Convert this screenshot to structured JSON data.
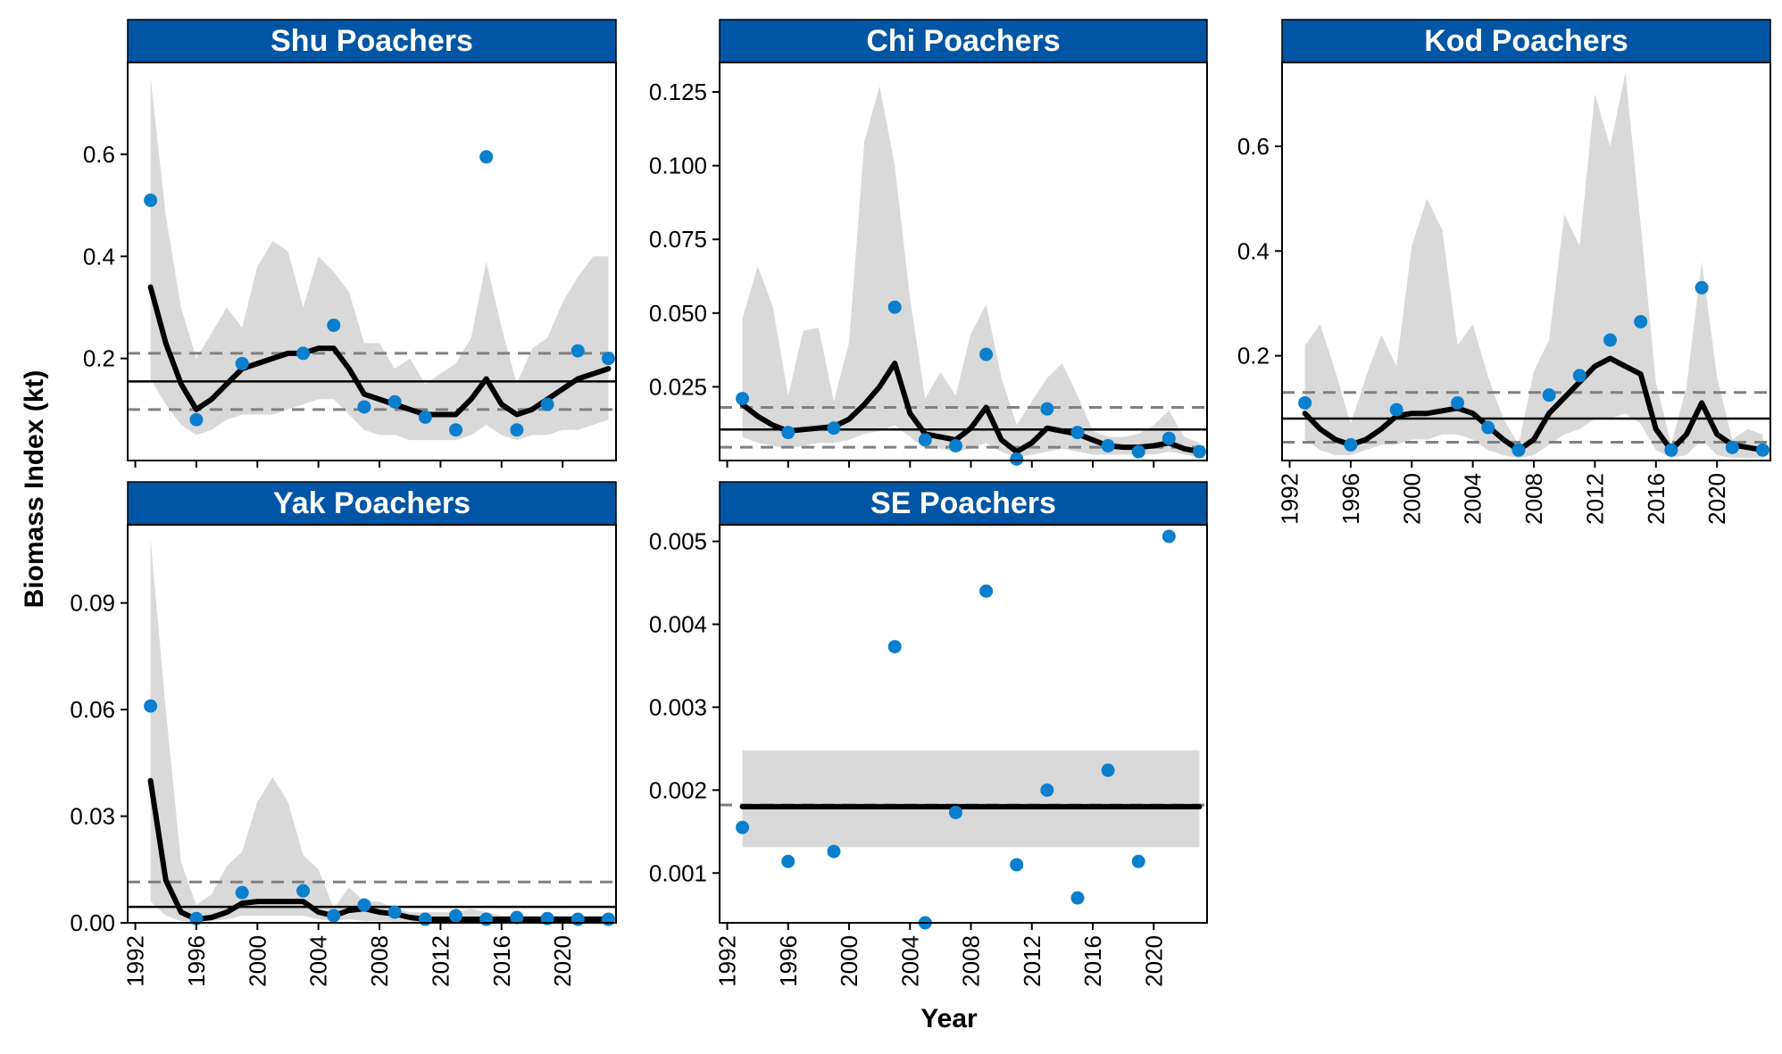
{
  "figure": {
    "xlabel": "Year",
    "ylabel": "Biomass Index (kt)",
    "colors": {
      "strip": "#0055A4",
      "strip_text": "#ffffff",
      "ribbon": "#d9d9d9",
      "line": "#000000",
      "points": "#0a7fce",
      "hline": "#000000",
      "dashed": "#808080"
    }
  },
  "chart_data": [
    {
      "panel": "shu",
      "title": "Shu Poachers",
      "type": "line",
      "xlim": [
        1991.5,
        2023.5
      ],
      "ylim": [
        0.0,
        0.78
      ],
      "xticks": [
        1992,
        1996,
        2000,
        2004,
        2008,
        2012,
        2016,
        2020
      ],
      "yticks": [
        "0.2",
        "0.4",
        "0.6"
      ],
      "show_x_ticks": false,
      "ribbon": {
        "x": [
          1993,
          1994,
          1995,
          1996,
          1997,
          1998,
          1999,
          2000,
          2001,
          2002,
          2003,
          2004,
          2005,
          2006,
          2007,
          2008,
          2009,
          2010,
          2011,
          2012,
          2013,
          2014,
          2015,
          2016,
          2017,
          2018,
          2019,
          2020,
          2021,
          2022,
          2023
        ],
        "upper": [
          0.75,
          0.48,
          0.3,
          0.2,
          0.25,
          0.3,
          0.26,
          0.38,
          0.43,
          0.41,
          0.3,
          0.4,
          0.37,
          0.33,
          0.23,
          0.23,
          0.18,
          0.2,
          0.15,
          0.17,
          0.19,
          0.24,
          0.39,
          0.26,
          0.15,
          0.22,
          0.24,
          0.31,
          0.36,
          0.4,
          0.4
        ],
        "lower": [
          0.16,
          0.11,
          0.07,
          0.05,
          0.06,
          0.08,
          0.09,
          0.09,
          0.09,
          0.1,
          0.11,
          0.12,
          0.12,
          0.09,
          0.06,
          0.05,
          0.05,
          0.04,
          0.04,
          0.04,
          0.04,
          0.05,
          0.07,
          0.05,
          0.04,
          0.05,
          0.05,
          0.06,
          0.06,
          0.07,
          0.08
        ]
      },
      "line": {
        "x": [
          1993,
          1994,
          1995,
          1996,
          1997,
          1998,
          1999,
          2000,
          2001,
          2002,
          2003,
          2004,
          2005,
          2006,
          2007,
          2008,
          2009,
          2010,
          2011,
          2012,
          2013,
          2014,
          2015,
          2016,
          2017,
          2018,
          2019,
          2020,
          2021,
          2022,
          2023
        ],
        "y": [
          0.34,
          0.23,
          0.15,
          0.1,
          0.12,
          0.15,
          0.18,
          0.19,
          0.2,
          0.21,
          0.21,
          0.22,
          0.22,
          0.18,
          0.13,
          0.12,
          0.11,
          0.1,
          0.09,
          0.09,
          0.09,
          0.12,
          0.16,
          0.11,
          0.09,
          0.1,
          0.12,
          0.14,
          0.16,
          0.17,
          0.18
        ]
      },
      "points": {
        "x": [
          1993,
          1996,
          1999,
          2003,
          2005,
          2007,
          2009,
          2011,
          2013,
          2015,
          2017,
          2019,
          2021,
          2023
        ],
        "y": [
          0.51,
          0.08,
          0.19,
          0.21,
          0.265,
          0.105,
          0.115,
          0.085,
          0.06,
          0.595,
          0.06,
          0.11,
          0.215,
          0.2
        ]
      },
      "hline": 0.155,
      "dashed": [
        0.21,
        0.1
      ]
    },
    {
      "panel": "chi",
      "title": "Chi Poachers",
      "type": "line",
      "xlim": [
        1991.5,
        2023.5
      ],
      "ylim": [
        0.0,
        0.135
      ],
      "xticks": [
        1992,
        1996,
        2000,
        2004,
        2008,
        2012,
        2016,
        2020
      ],
      "yticks": [
        "0.025",
        "0.050",
        "0.075",
        "0.100",
        "0.125"
      ],
      "show_x_ticks": false,
      "ribbon": {
        "x": [
          1993,
          1994,
          1995,
          1996,
          1997,
          1998,
          1999,
          2000,
          2001,
          2002,
          2003,
          2004,
          2005,
          2006,
          2007,
          2008,
          2009,
          2010,
          2011,
          2012,
          2013,
          2014,
          2015,
          2016,
          2017,
          2018,
          2019,
          2020,
          2021,
          2022,
          2023
        ],
        "upper": [
          0.048,
          0.066,
          0.052,
          0.022,
          0.044,
          0.045,
          0.02,
          0.04,
          0.108,
          0.127,
          0.1,
          0.055,
          0.021,
          0.03,
          0.022,
          0.043,
          0.053,
          0.028,
          0.012,
          0.02,
          0.028,
          0.033,
          0.022,
          0.01,
          0.008,
          0.008,
          0.009,
          0.012,
          0.017,
          0.008,
          0.006
        ],
        "lower": [
          0.008,
          0.006,
          0.005,
          0.004,
          0.005,
          0.006,
          0.006,
          0.007,
          0.009,
          0.01,
          0.012,
          0.008,
          0.004,
          0.004,
          0.003,
          0.004,
          0.006,
          0.003,
          0.001,
          0.002,
          0.003,
          0.004,
          0.003,
          0.002,
          0.002,
          0.002,
          0.002,
          0.002,
          0.003,
          0.002,
          0.001
        ]
      },
      "line": {
        "x": [
          1993,
          1994,
          1995,
          1996,
          1997,
          1998,
          1999,
          2000,
          2001,
          2002,
          2003,
          2004,
          2005,
          2006,
          2007,
          2008,
          2009,
          2010,
          2011,
          2012,
          2013,
          2014,
          2015,
          2016,
          2017,
          2018,
          2019,
          2020,
          2021,
          2022,
          2023
        ],
        "y": [
          0.019,
          0.015,
          0.012,
          0.01,
          0.0105,
          0.011,
          0.0115,
          0.014,
          0.019,
          0.025,
          0.033,
          0.016,
          0.009,
          0.008,
          0.007,
          0.011,
          0.018,
          0.007,
          0.003,
          0.006,
          0.011,
          0.01,
          0.009,
          0.007,
          0.005,
          0.0045,
          0.0045,
          0.005,
          0.006,
          0.004,
          0.003
        ]
      },
      "points": {
        "x": [
          1993,
          1996,
          1999,
          2003,
          2005,
          2007,
          2009,
          2011,
          2013,
          2015,
          2017,
          2019,
          2021,
          2023
        ],
        "y": [
          0.021,
          0.0095,
          0.011,
          0.052,
          0.007,
          0.005,
          0.036,
          0.0005,
          0.0175,
          0.0095,
          0.005,
          0.003,
          0.0075,
          0.003
        ]
      },
      "hline": 0.0105,
      "dashed": [
        0.018,
        0.0045
      ]
    },
    {
      "panel": "kod",
      "title": "Kod Poachers",
      "type": "line",
      "xlim": [
        1991.5,
        2023.5
      ],
      "ylim": [
        0.0,
        0.76
      ],
      "xticks": [
        1992,
        1996,
        2000,
        2004,
        2008,
        2012,
        2016,
        2020
      ],
      "yticks": [
        "0.2",
        "0.4",
        "0.6"
      ],
      "show_x_ticks": true,
      "ribbon": {
        "x": [
          1993,
          1994,
          1995,
          1996,
          1997,
          1998,
          1999,
          2000,
          2001,
          2002,
          2003,
          2004,
          2005,
          2006,
          2007,
          2008,
          2009,
          2010,
          2011,
          2012,
          2013,
          2014,
          2015,
          2016,
          2017,
          2018,
          2019,
          2020,
          2021,
          2022,
          2023
        ],
        "upper": [
          0.22,
          0.26,
          0.17,
          0.07,
          0.16,
          0.24,
          0.18,
          0.41,
          0.5,
          0.44,
          0.22,
          0.26,
          0.16,
          0.08,
          0.03,
          0.17,
          0.23,
          0.47,
          0.41,
          0.7,
          0.6,
          0.74,
          0.45,
          0.15,
          0.03,
          0.14,
          0.38,
          0.16,
          0.04,
          0.06,
          0.05
        ],
        "lower": [
          0.04,
          0.02,
          0.01,
          0.01,
          0.02,
          0.03,
          0.03,
          0.04,
          0.04,
          0.05,
          0.05,
          0.04,
          0.02,
          0.01,
          0.005,
          0.01,
          0.03,
          0.05,
          0.06,
          0.08,
          0.08,
          0.09,
          0.07,
          0.02,
          0.005,
          0.01,
          0.04,
          0.01,
          0.005,
          0.005,
          0.005
        ]
      },
      "line": {
        "x": [
          1993,
          1994,
          1995,
          1996,
          1997,
          1998,
          1999,
          2000,
          2001,
          2002,
          2003,
          2004,
          2005,
          2006,
          2007,
          2008,
          2009,
          2010,
          2011,
          2012,
          2013,
          2014,
          2015,
          2016,
          2017,
          2018,
          2019,
          2020,
          2021,
          2022,
          2023
        ],
        "y": [
          0.09,
          0.06,
          0.04,
          0.03,
          0.04,
          0.06,
          0.085,
          0.09,
          0.09,
          0.095,
          0.1,
          0.09,
          0.065,
          0.04,
          0.02,
          0.04,
          0.09,
          0.12,
          0.15,
          0.18,
          0.195,
          0.18,
          0.165,
          0.06,
          0.02,
          0.05,
          0.11,
          0.05,
          0.03,
          0.025,
          0.02
        ]
      },
      "points": {
        "x": [
          1993,
          1996,
          1999,
          2003,
          2005,
          2007,
          2009,
          2011,
          2013,
          2015,
          2017,
          2019,
          2021,
          2023
        ],
        "y": [
          0.11,
          0.03,
          0.097,
          0.11,
          0.063,
          0.02,
          0.125,
          0.162,
          0.23,
          0.265,
          0.02,
          0.33,
          0.025,
          0.02
        ]
      },
      "hline": 0.08,
      "dashed": [
        0.13,
        0.035
      ]
    },
    {
      "panel": "yak",
      "title": "Yak Poachers",
      "type": "line",
      "xlim": [
        1991.5,
        2023.5
      ],
      "ylim": [
        0.0,
        0.112
      ],
      "xticks": [
        1992,
        1996,
        2000,
        2004,
        2008,
        2012,
        2016,
        2020
      ],
      "yticks": [
        "0.00",
        "0.03",
        "0.06",
        "0.09"
      ],
      "show_x_ticks": true,
      "ribbon": {
        "x": [
          1993,
          1994,
          1995,
          1996,
          1997,
          1998,
          1999,
          2000,
          2001,
          2002,
          2003,
          2004,
          2005,
          2006,
          2007,
          2008,
          2009,
          2010,
          2011,
          2012,
          2013,
          2014,
          2015,
          2016,
          2017,
          2018,
          2019,
          2020,
          2021,
          2022,
          2023
        ],
        "upper": [
          0.108,
          0.06,
          0.017,
          0.005,
          0.008,
          0.016,
          0.02,
          0.034,
          0.041,
          0.034,
          0.019,
          0.015,
          0.004,
          0.01,
          0.006,
          0.006,
          0.004,
          0.003,
          0.003,
          0.003,
          0.003,
          0.004,
          0.003,
          0.002,
          0.002,
          0.002,
          0.002,
          0.002,
          0.002,
          0.002,
          0.002
        ],
        "lower": [
          0.006,
          0.002,
          0.0005,
          0.0002,
          0.0005,
          0.001,
          0.002,
          0.002,
          0.002,
          0.002,
          0.002,
          0.001,
          0.0005,
          0.001,
          0.0005,
          0.0005,
          0.0003,
          0.0002,
          0.0002,
          0.0002,
          0.0002,
          0.0002,
          0.0002,
          0.0001,
          0.0001,
          0.0001,
          0.0001,
          0.0001,
          0.0001,
          0.0001,
          0.0001
        ]
      },
      "line": {
        "x": [
          1993,
          1994,
          1995,
          1996,
          1997,
          1998,
          1999,
          2000,
          2001,
          2002,
          2003,
          2004,
          2005,
          2006,
          2007,
          2008,
          2009,
          2010,
          2011,
          2012,
          2013,
          2014,
          2015,
          2016,
          2017,
          2018,
          2019,
          2020,
          2021,
          2022,
          2023
        ],
        "y": [
          0.04,
          0.012,
          0.003,
          0.001,
          0.0015,
          0.003,
          0.0055,
          0.006,
          0.006,
          0.006,
          0.006,
          0.003,
          0.002,
          0.0035,
          0.004,
          0.003,
          0.0025,
          0.0015,
          0.001,
          0.001,
          0.001,
          0.001,
          0.001,
          0.001,
          0.001,
          0.001,
          0.001,
          0.001,
          0.001,
          0.001,
          0.001
        ]
      },
      "points": {
        "x": [
          1993,
          1996,
          1999,
          2003,
          2005,
          2007,
          2009,
          2011,
          2013,
          2015,
          2017,
          2019,
          2021,
          2023
        ],
        "y": [
          0.061,
          0.0012,
          0.0085,
          0.009,
          0.002,
          0.005,
          0.003,
          0.001,
          0.002,
          0.001,
          0.0015,
          0.0012,
          0.001,
          0.001
        ]
      },
      "hline": 0.0045,
      "dashed": [
        0.0115
      ]
    },
    {
      "panel": "se",
      "title": "SE Poachers",
      "type": "scatter",
      "xlim": [
        1991.5,
        2023.5
      ],
      "ylim": [
        0.0004,
        0.0052
      ],
      "xticks": [
        1992,
        1996,
        2000,
        2004,
        2008,
        2012,
        2016,
        2020
      ],
      "yticks": [
        "0.001",
        "0.002",
        "0.003",
        "0.004",
        "0.005"
      ],
      "show_x_ticks": true,
      "ribbon": {
        "x": [
          1993,
          2023
        ],
        "upper": [
          0.00248,
          0.00248
        ],
        "lower": [
          0.00131,
          0.00131
        ]
      },
      "line": {
        "x": [
          1993,
          2023
        ],
        "y": [
          0.0018,
          0.0018
        ]
      },
      "points": {
        "x": [
          1993,
          1996,
          1999,
          2003,
          2005,
          2007,
          2009,
          2011,
          2013,
          2015,
          2017,
          2019,
          2021
        ],
        "y": [
          0.00155,
          0.00114,
          0.00126,
          0.00373,
          0.0004,
          0.00173,
          0.0044,
          0.0011,
          0.002,
          0.0007,
          0.00224,
          0.00114,
          0.00506
        ]
      },
      "hline": null,
      "dashed": [
        0.00182
      ]
    }
  ]
}
